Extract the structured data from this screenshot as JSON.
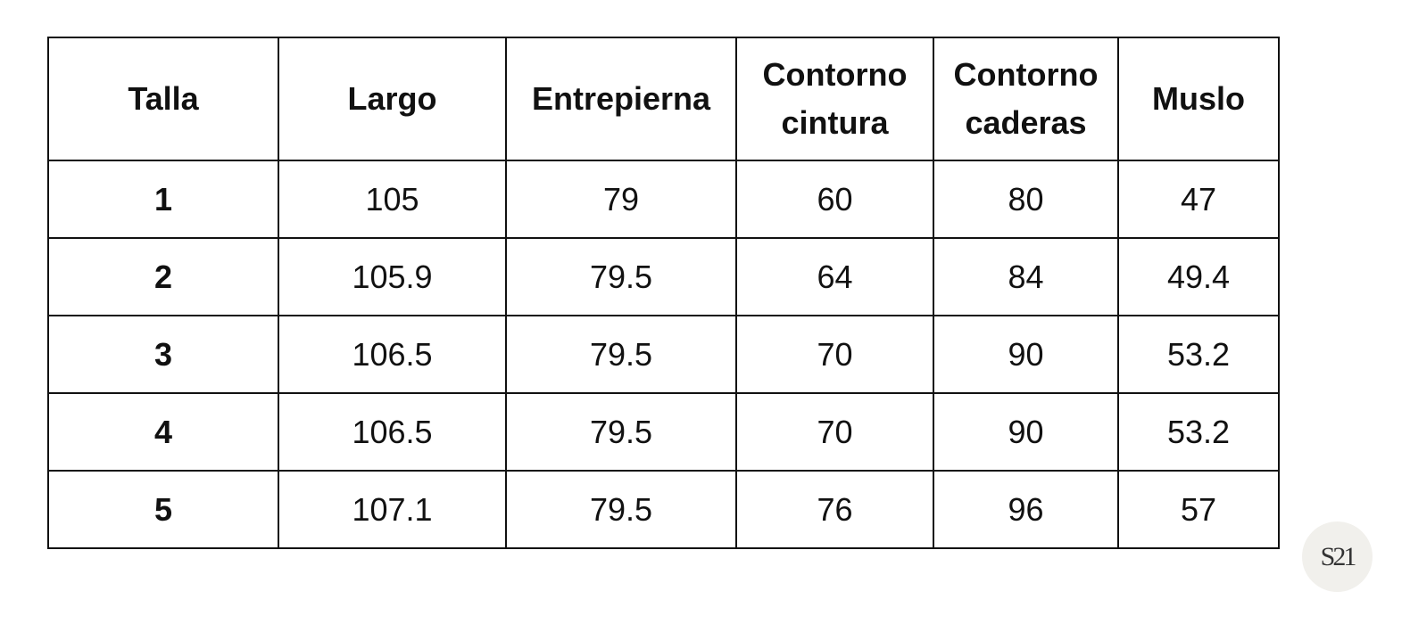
{
  "table": {
    "header": [
      "Talla",
      "Largo",
      "Entrepierna",
      "Contorno cintura",
      "Contorno caderas",
      "Muslo"
    ],
    "rows": [
      [
        "1",
        "105",
        "79",
        "60",
        "80",
        "47"
      ],
      [
        "2",
        "105.9",
        "79.5",
        "64",
        "84",
        "49.4"
      ],
      [
        "3",
        "106.5",
        "79.5",
        "70",
        "90",
        "53.2"
      ],
      [
        "4",
        "106.5",
        "79.5",
        "70",
        "90",
        "53.2"
      ],
      [
        "5",
        "107.1",
        "79.5",
        "76",
        "96",
        "57"
      ]
    ]
  },
  "logo": "S21"
}
